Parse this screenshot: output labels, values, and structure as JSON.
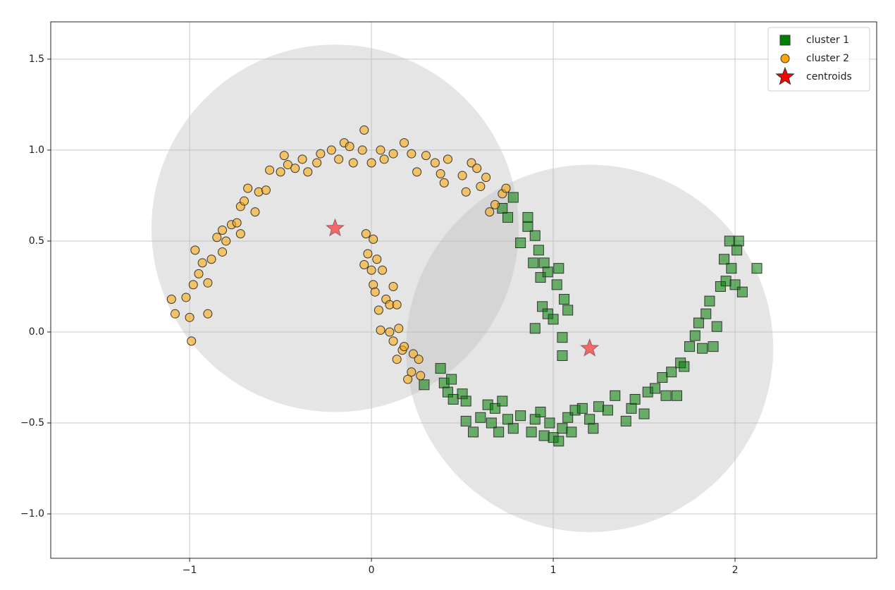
{
  "chart_data": {
    "type": "scatter",
    "xlim": [
      -1.764,
      2.779
    ],
    "ylim": [
      -1.244,
      1.705
    ],
    "xticks": [
      {
        "value": -1,
        "label": "−1"
      },
      0,
      1,
      2
    ],
    "yticks": [
      {
        "value": -1.0,
        "label": "−1.0"
      },
      {
        "value": -0.5,
        "label": "−0.5"
      },
      {
        "value": 0.0,
        "label": "0.0"
      },
      0.5,
      {
        "value": 1.0,
        "label": "1.0"
      },
      1.5
    ],
    "grid": true,
    "legend": "upper right",
    "series": [
      {
        "name": "cluster 1",
        "color": "#008000",
        "marker": "square",
        "x": [
          0.29,
          0.38,
          0.4,
          0.42,
          0.44,
          0.45,
          0.5,
          0.52,
          0.52,
          0.56,
          0.6,
          0.64,
          0.66,
          0.68,
          0.7,
          0.72,
          0.75,
          0.78,
          0.82,
          0.88,
          0.9,
          0.93,
          0.95,
          0.98,
          1.0,
          1.03,
          1.05,
          1.08,
          1.1,
          1.12,
          1.16,
          1.2,
          1.22,
          1.25,
          1.3,
          1.34,
          1.4,
          1.43,
          1.45,
          1.5,
          1.52,
          1.56,
          1.6,
          1.62,
          1.65,
          1.68,
          1.7,
          1.72,
          1.75,
          1.78,
          1.8,
          1.82,
          1.84,
          1.86,
          1.88,
          1.9,
          1.92,
          1.94,
          1.95,
          1.97,
          1.98,
          2.0,
          2.01,
          2.02,
          2.04,
          2.12,
          0.72,
          0.75,
          0.78,
          0.82,
          0.86,
          0.86,
          0.89,
          0.9,
          0.92,
          0.93,
          0.95,
          0.97,
          0.9,
          0.94,
          0.97,
          1.0,
          1.02,
          1.03,
          1.06,
          1.08,
          1.05,
          1.05
        ],
        "values": [
          -0.29,
          -0.2,
          -0.28,
          -0.33,
          -0.26,
          -0.37,
          -0.34,
          -0.38,
          -0.49,
          -0.55,
          -0.47,
          -0.4,
          -0.5,
          -0.42,
          -0.55,
          -0.38,
          -0.48,
          -0.53,
          -0.46,
          -0.55,
          -0.48,
          -0.44,
          -0.57,
          -0.5,
          -0.58,
          -0.6,
          -0.53,
          -0.47,
          -0.55,
          -0.43,
          -0.42,
          -0.48,
          -0.53,
          -0.41,
          -0.43,
          -0.35,
          -0.49,
          -0.42,
          -0.37,
          -0.45,
          -0.33,
          -0.31,
          -0.25,
          -0.35,
          -0.22,
          -0.35,
          -0.17,
          -0.19,
          -0.08,
          -0.02,
          0.05,
          -0.09,
          0.1,
          0.17,
          -0.08,
          0.03,
          0.25,
          0.4,
          0.28,
          0.5,
          0.35,
          0.26,
          0.45,
          0.5,
          0.22,
          0.35,
          0.68,
          0.63,
          0.74,
          0.49,
          0.58,
          0.63,
          0.38,
          0.53,
          0.45,
          0.3,
          0.38,
          0.33,
          0.02,
          0.14,
          0.1,
          0.07,
          0.26,
          0.35,
          0.18,
          0.12,
          -0.03,
          -0.13
        ]
      },
      {
        "name": "cluster 2",
        "color": "#ffa500",
        "marker": "circle",
        "x": [
          -1.1,
          -1.08,
          -1.0,
          -0.99,
          -1.02,
          -0.98,
          -0.97,
          -0.95,
          -0.93,
          -0.9,
          -0.9,
          -0.88,
          -0.85,
          -0.82,
          -0.82,
          -0.8,
          -0.77,
          -0.74,
          -0.72,
          -0.72,
          -0.7,
          -0.68,
          -0.64,
          -0.62,
          -0.58,
          -0.56,
          -0.5,
          -0.48,
          -0.46,
          -0.42,
          -0.38,
          -0.35,
          -0.3,
          -0.28,
          -0.22,
          -0.18,
          -0.15,
          -0.12,
          -0.1,
          -0.05,
          -0.04,
          0.0,
          0.05,
          0.07,
          0.12,
          0.18,
          0.22,
          0.25,
          0.3,
          0.35,
          0.38,
          0.4,
          0.42,
          0.5,
          0.52,
          0.55,
          0.58,
          0.6,
          0.63,
          0.65,
          0.68,
          0.72,
          0.74,
          -0.03,
          0.01,
          -0.02,
          -0.04,
          0.0,
          0.03,
          0.06,
          0.01,
          0.02,
          0.08,
          0.04,
          0.1,
          0.12,
          0.14,
          0.05,
          0.1,
          0.15,
          0.12,
          0.17,
          0.14,
          0.18,
          0.23,
          0.26,
          0.22,
          0.27,
          0.2
        ],
        "values": [
          0.18,
          0.1,
          0.08,
          -0.05,
          0.19,
          0.26,
          0.45,
          0.32,
          0.38,
          0.27,
          0.1,
          0.4,
          0.52,
          0.56,
          0.44,
          0.5,
          0.59,
          0.6,
          0.54,
          0.69,
          0.72,
          0.79,
          0.66,
          0.77,
          0.78,
          0.89,
          0.88,
          0.97,
          0.92,
          0.9,
          0.95,
          0.88,
          0.93,
          0.98,
          1.0,
          0.95,
          1.04,
          1.02,
          0.93,
          1.0,
          1.11,
          0.93,
          1.0,
          0.95,
          0.98,
          1.04,
          0.98,
          0.88,
          0.97,
          0.93,
          0.87,
          0.82,
          0.95,
          0.86,
          0.77,
          0.93,
          0.9,
          0.8,
          0.85,
          0.66,
          0.7,
          0.76,
          0.79,
          0.54,
          0.51,
          0.43,
          0.37,
          0.34,
          0.4,
          0.34,
          0.26,
          0.22,
          0.18,
          0.12,
          0.15,
          0.25,
          0.15,
          0.01,
          0.0,
          0.02,
          -0.05,
          -0.1,
          -0.15,
          -0.08,
          -0.12,
          -0.15,
          -0.22,
          -0.24,
          -0.26
        ]
      },
      {
        "name": "centroids",
        "color": "#ff0000",
        "marker": "star",
        "x": [
          1.2,
          -0.2
        ],
        "values": [
          -0.09,
          0.57
        ],
        "radius": [
          1.01,
          1.01
        ]
      }
    ]
  }
}
